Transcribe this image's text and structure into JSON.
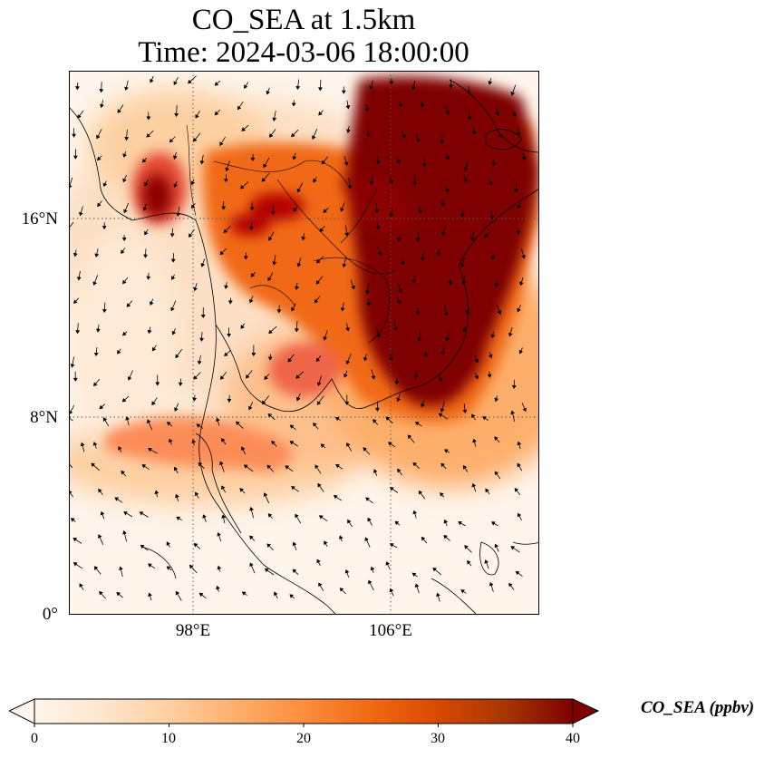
{
  "title": {
    "line1": "CO_SEA at 1.5km",
    "line2": "Time: 2024-03-06 18:00:00"
  },
  "map": {
    "lat_labels": [
      "16°N",
      "8°N",
      "0°"
    ],
    "lon_labels": [
      "98°E",
      "106°E"
    ],
    "lat_values": [
      16,
      8,
      0
    ],
    "lon_values": [
      98,
      106
    ],
    "extent": {
      "lon_min": 93,
      "lon_max": 112,
      "lat_min": 0,
      "lat_max": 22
    },
    "gridlines": true,
    "features": [
      "coastlines",
      "country-borders",
      "wind-vectors"
    ]
  },
  "colorbar": {
    "label": "CO_SEA (ppbv)",
    "ticks": [
      "0",
      "10",
      "20",
      "30",
      "40"
    ],
    "min": 0,
    "max": 40,
    "extend": "both",
    "colormap": [
      "#fff5eb",
      "#fee6ce",
      "#fdd0a2",
      "#fdae6b",
      "#fd8d3c",
      "#f16913",
      "#d94801",
      "#a63603",
      "#7f0000"
    ]
  },
  "field_hotspots": [
    {
      "lon": 106.5,
      "lat": 12.5,
      "value": 40
    },
    {
      "lon": 108.5,
      "lat": 18.0,
      "value": 40
    },
    {
      "lon": 104.5,
      "lat": 17.5,
      "value": 38
    },
    {
      "lon": 96.5,
      "lat": 17.0,
      "value": 36
    },
    {
      "lon": 101.5,
      "lat": 16.5,
      "value": 34
    },
    {
      "lon": 110.0,
      "lat": 17.0,
      "value": 38
    },
    {
      "lon": 108.0,
      "lat": 10.5,
      "value": 36
    }
  ]
}
